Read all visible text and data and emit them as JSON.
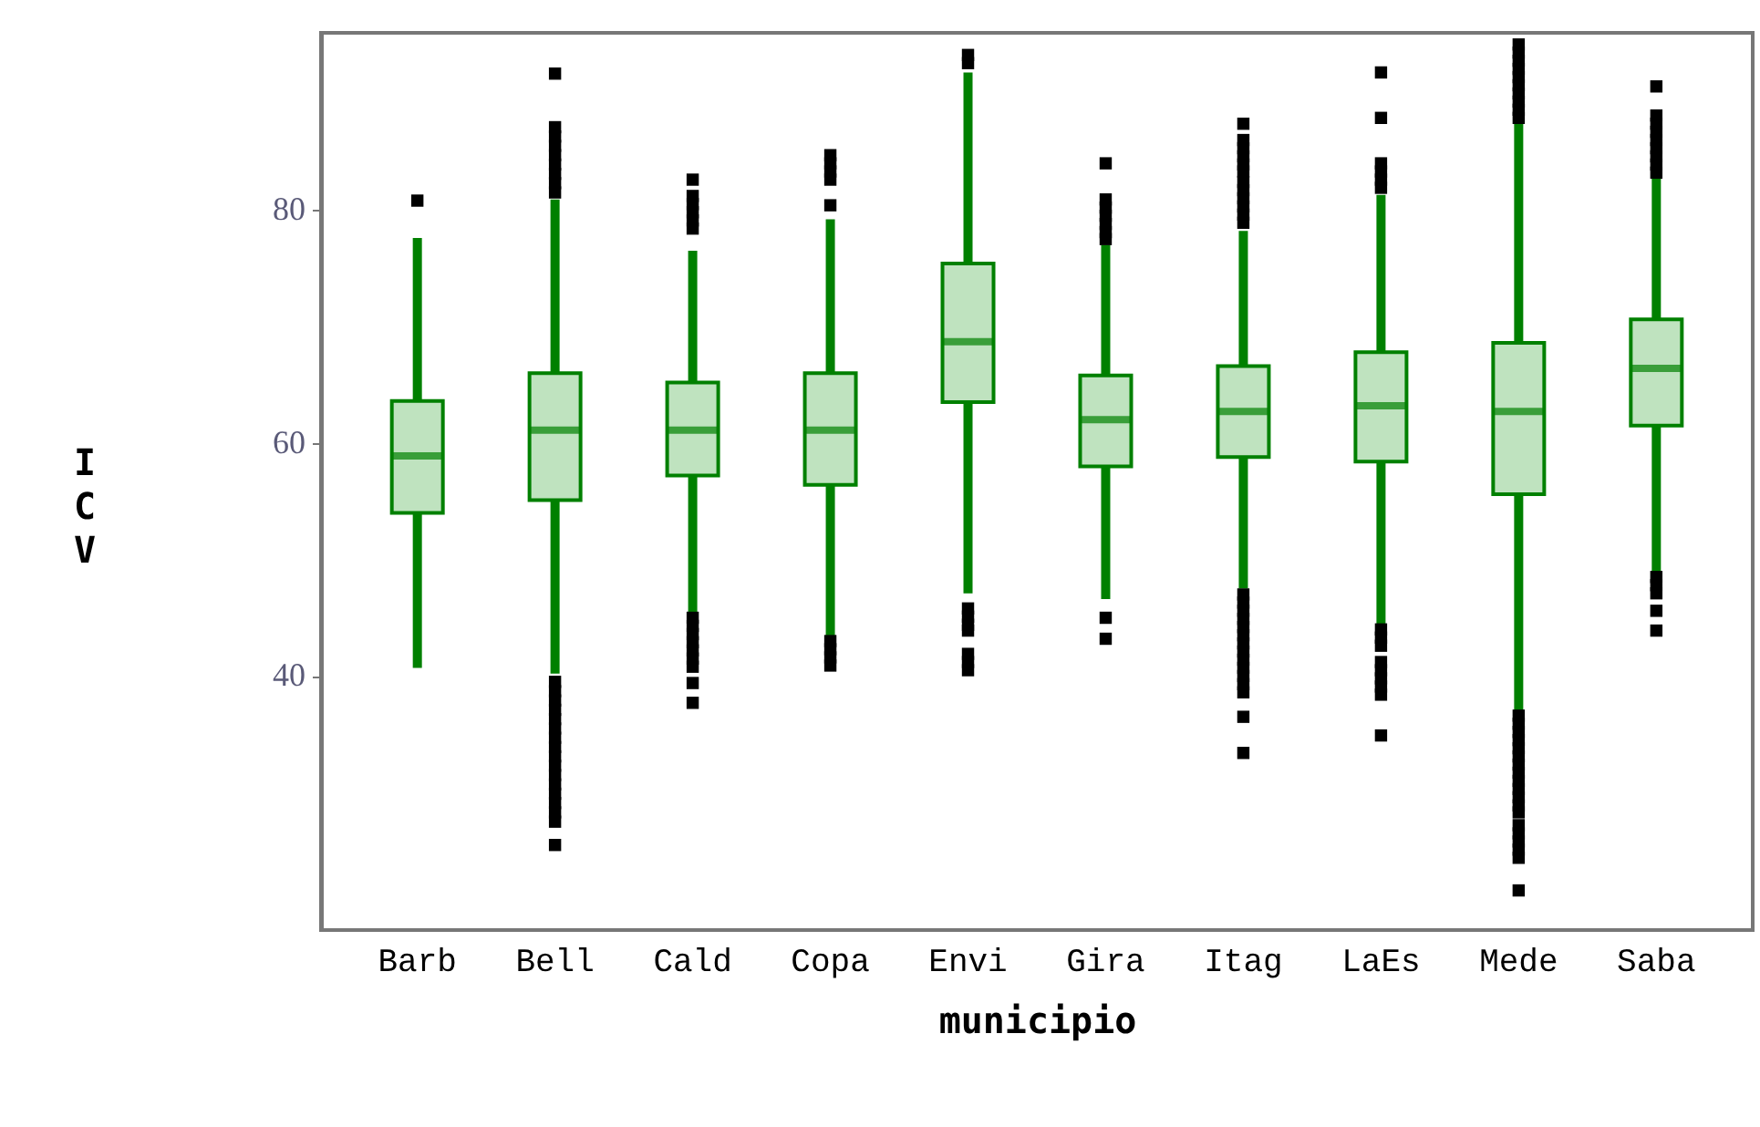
{
  "chart_data": {
    "type": "box",
    "xlabel": "municipio",
    "ylabel": "ICV",
    "categories": [
      "Barb",
      "Bell",
      "Cald",
      "Copa",
      "Envi",
      "Gira",
      "Itag",
      "LaEs",
      "Mede",
      "Saba"
    ],
    "series": [
      {
        "color": "#008000",
        "boxes": [
          {
            "low": 40.7,
            "q1": 54.0,
            "median": 58.9,
            "q3": 63.6,
            "high": 77.6,
            "outliers": [
              80.8
            ]
          },
          {
            "low": 40.2,
            "q1": 55.1,
            "median": 61.1,
            "q3": 66.0,
            "high": 80.9,
            "outliers": [
              81.5,
              82.3,
              83.1,
              83.9,
              84.7,
              85.5,
              86.3,
              87.1,
              91.7,
              39.5,
              38.7,
              37.9,
              37.1,
              36.3,
              35.5,
              34.7,
              33.9,
              33.1,
              32.3,
              31.5,
              30.7,
              29.9,
              29.1,
              28.3,
              27.5,
              25.5
            ]
          },
          {
            "low": 45.5,
            "q1": 57.2,
            "median": 61.1,
            "q3": 65.2,
            "high": 76.5,
            "outliers": [
              82.6,
              81.2,
              80.5,
              79.8,
              79.1,
              78.4,
              45.0,
              44.3,
              43.6,
              42.9,
              42.2,
              41.5,
              40.8,
              39.4,
              37.7
            ]
          },
          {
            "low": 43.3,
            "q1": 56.4,
            "median": 61.1,
            "q3": 66.0,
            "high": 79.2,
            "outliers": [
              84.7,
              84.0,
              83.3,
              82.6,
              80.4,
              43.0,
              42.3,
              41.6,
              40.9
            ]
          },
          {
            "low": 47.1,
            "q1": 63.5,
            "median": 68.7,
            "q3": 75.4,
            "high": 91.8,
            "outliers": [
              93.3,
              92.6,
              45.8,
              45.1,
              44.4,
              43.9,
              41.9,
              41.2,
              40.5
            ]
          },
          {
            "low": 46.6,
            "q1": 58.0,
            "median": 62.0,
            "q3": 65.8,
            "high": 77.0,
            "outliers": [
              84.0,
              80.9,
              80.2,
              79.5,
              78.8,
              78.1,
              77.5,
              45.0,
              43.2
            ]
          },
          {
            "low": 47.5,
            "q1": 58.8,
            "median": 62.7,
            "q3": 66.6,
            "high": 78.2,
            "outliers": [
              87.4,
              86.0,
              85.3,
              84.6,
              83.9,
              83.3,
              82.4,
              81.7,
              81.0,
              80.3,
              79.6,
              78.9,
              47.0,
              46.3,
              45.6,
              44.9,
              44.2,
              43.5,
              42.8,
              42.1,
              41.4,
              40.7,
              40.0,
              39.3,
              38.6,
              36.5,
              33.4
            ]
          },
          {
            "low": 44.5,
            "q1": 58.4,
            "median": 63.2,
            "q3": 67.8,
            "high": 81.3,
            "outliers": [
              91.8,
              87.9,
              84.0,
              83.3,
              82.6,
              81.9,
              44.0,
              43.3,
              42.6,
              41.2,
              40.5,
              39.8,
              39.1,
              38.4,
              34.9
            ]
          },
          {
            "low": 37.0,
            "q1": 55.6,
            "median": 62.7,
            "q3": 68.6,
            "high": 87.6,
            "outliers": [
              94.2,
              93.5,
              92.8,
              92.1,
              91.4,
              90.7,
              90.0,
              89.3,
              88.6,
              87.9,
              36.6,
              35.9,
              35.2,
              34.5,
              33.8,
              33.1,
              32.4,
              31.7,
              31.0,
              30.3,
              29.6,
              28.9,
              28.3,
              27.2,
              26.5,
              25.8,
              25.1,
              24.4,
              21.6
            ]
          },
          {
            "low": 48.8,
            "q1": 61.5,
            "median": 66.4,
            "q3": 70.6,
            "high": 82.9,
            "outliers": [
              90.6,
              88.1,
              87.4,
              86.7,
              86.0,
              85.3,
              84.6,
              83.9,
              83.2,
              48.5,
              47.8,
              47.1,
              45.6,
              43.9
            ]
          }
        ]
      }
    ],
    "ylim": [
      18.2,
      95.2
    ],
    "yticks": [
      40,
      60,
      80
    ],
    "grid": false
  }
}
